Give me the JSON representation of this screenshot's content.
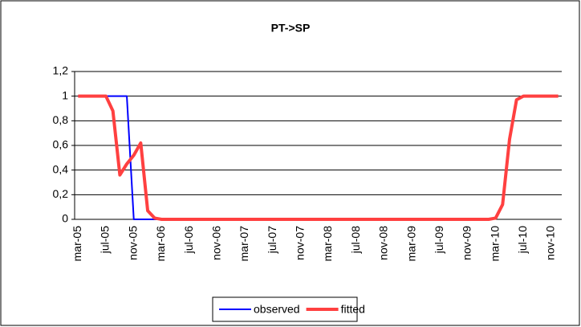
{
  "chart_data": {
    "type": "line",
    "title": "PT->SP",
    "categories": [
      "mar-05",
      null,
      null,
      null,
      "jul-05",
      null,
      null,
      null,
      "nov-05",
      null,
      null,
      null,
      "mar-06",
      null,
      null,
      null,
      "jul-06",
      null,
      null,
      null,
      "nov-06",
      null,
      null,
      null,
      "mar-07",
      null,
      null,
      null,
      "jul-07",
      null,
      null,
      null,
      "nov-07",
      null,
      null,
      null,
      "mar-08",
      null,
      null,
      null,
      "jul-08",
      null,
      null,
      null,
      "nov-08",
      null,
      null,
      null,
      "mar-09",
      null,
      null,
      null,
      "jul-09",
      null,
      null,
      null,
      "nov-09",
      null,
      null,
      null,
      "mar-10",
      null,
      null,
      null,
      "jul-10",
      null,
      null,
      null,
      "nov-10",
      null
    ],
    "series": [
      {
        "name": "observed",
        "color": "#0000ff",
        "values": [
          1,
          1,
          1,
          1,
          1,
          1,
          1,
          1,
          0,
          0,
          0,
          0,
          0,
          0,
          0,
          0,
          0,
          0,
          0,
          0,
          0,
          0,
          0,
          0,
          0,
          0,
          0,
          0,
          0,
          0,
          0,
          0,
          0,
          0,
          0,
          0,
          0,
          0,
          0,
          0,
          0,
          0,
          0,
          0,
          0,
          0,
          0,
          0,
          0,
          0,
          0,
          0,
          0,
          0,
          0,
          0,
          0,
          0,
          0,
          0,
          null,
          null,
          null,
          null,
          null,
          null,
          null,
          null,
          null,
          null
        ]
      },
      {
        "name": "fitted",
        "color": "#ff4040",
        "values": [
          1,
          1,
          1,
          1,
          1,
          0.88,
          0.36,
          0.45,
          0.52,
          0.62,
          0.07,
          0.01,
          0,
          0,
          0,
          0,
          0,
          0,
          0,
          0,
          0,
          0,
          0,
          0,
          0,
          0,
          0,
          0,
          0,
          0,
          0,
          0,
          0,
          0,
          0,
          0,
          0,
          0,
          0,
          0,
          0,
          0,
          0,
          0,
          0,
          0,
          0,
          0,
          0,
          0,
          0,
          0,
          0,
          0,
          0,
          0,
          0,
          0,
          0,
          0,
          0.01,
          0.12,
          0.65,
          0.97,
          1,
          1,
          1,
          1,
          1,
          1
        ]
      }
    ],
    "ylim": [
      0,
      1.2
    ],
    "yticks": [
      0,
      {
        "value": 0.2,
        "label": "0,2"
      },
      {
        "value": 0.4,
        "label": "0,4"
      },
      {
        "value": 0.6,
        "label": "0,6"
      },
      {
        "value": 0.8,
        "label": "0,8"
      },
      1,
      {
        "value": 1.2,
        "label": "1,2"
      }
    ],
    "grid": true,
    "legend": "bottom"
  }
}
